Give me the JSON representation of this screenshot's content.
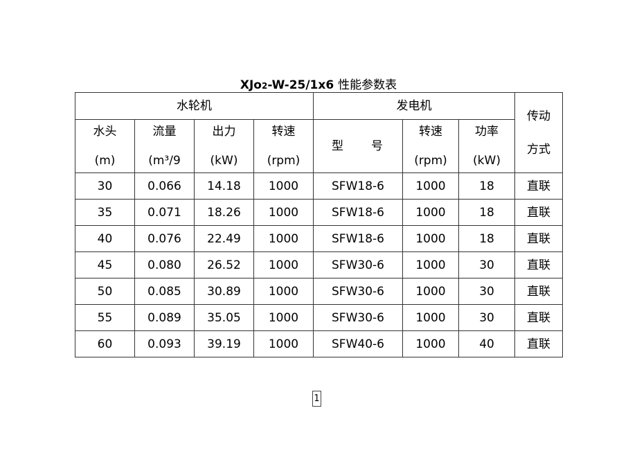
{
  "title": {
    "prefix": "XJo",
    "sub": "2",
    "model": "-W-25/1x6",
    "suffix": "性能参数表"
  },
  "groups": {
    "turbine": "水轮机",
    "generator": "发电机",
    "drive_1": "传动",
    "drive_2": "方式"
  },
  "headers": {
    "head": {
      "name": "水头",
      "unit": "(m)"
    },
    "flow": {
      "name": "流量",
      "unit": "(m³/9"
    },
    "output": {
      "name": "出力",
      "unit": "(kW)"
    },
    "speed": {
      "name": "转速",
      "unit": "(rpm)"
    },
    "model": {
      "name": "型　　号"
    },
    "gen_speed": {
      "name": "转速",
      "unit": "(rpm)"
    },
    "power": {
      "name": "功率",
      "unit": "(kW)"
    }
  },
  "rows": [
    {
      "head": "30",
      "flow": "0.066",
      "output": "14.18",
      "speed": "1000",
      "model": "SFW18-6",
      "gen_speed": "1000",
      "power": "18",
      "drive": "直联"
    },
    {
      "head": "35",
      "flow": "0.071",
      "output": "18.26",
      "speed": "1000",
      "model": "SFW18-6",
      "gen_speed": "1000",
      "power": "18",
      "drive": "直联"
    },
    {
      "head": "40",
      "flow": "0.076",
      "output": "22.49",
      "speed": "1000",
      "model": "SFW18-6",
      "gen_speed": "1000",
      "power": "18",
      "drive": "直联"
    },
    {
      "head": "45",
      "flow": "0.080",
      "output": "26.52",
      "speed": "1000",
      "model": "SFW30-6",
      "gen_speed": "1000",
      "power": "30",
      "drive": "直联"
    },
    {
      "head": "50",
      "flow": "0.085",
      "output": "30.89",
      "speed": "1000",
      "model": "SFW30-6",
      "gen_speed": "1000",
      "power": "30",
      "drive": "直联"
    },
    {
      "head": "55",
      "flow": "0.089",
      "output": "35.05",
      "speed": "1000",
      "model": "SFW30-6",
      "gen_speed": "1000",
      "power": "30",
      "drive": "直联"
    },
    {
      "head": "60",
      "flow": "0.093",
      "output": "39.19",
      "speed": "1000",
      "model": "SFW40-6",
      "gen_speed": "1000",
      "power": "40",
      "drive": "直联"
    }
  ],
  "page_number": "1"
}
